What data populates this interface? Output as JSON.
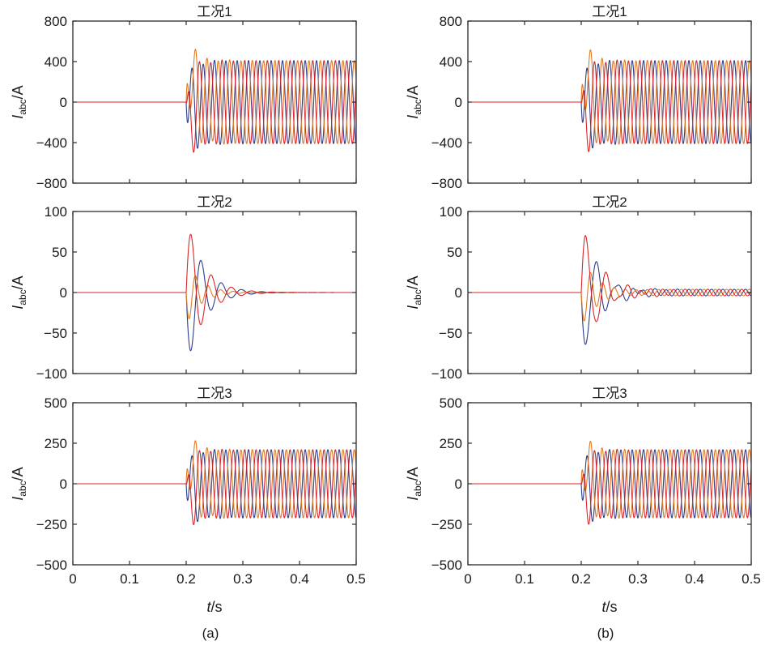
{
  "chart_data": [
    {
      "type": "line",
      "panel": "a",
      "title": "工况1",
      "ylabel_main": "I",
      "ylabel_sub": "abc",
      "ylabel_unit": "/A",
      "ylim": [
        -800,
        800
      ],
      "yticks": [
        800,
        400,
        0,
        -400,
        -800
      ],
      "ytick_labels": [
        "800",
        "400",
        "0",
        "−400",
        "−800"
      ],
      "xlim": [
        0,
        0.5
      ],
      "xtick_labels": [],
      "xlabel": "",
      "caption": "",
      "series": [
        {
          "color": "#2b3e8c",
          "t0": 0.2,
          "freq": 50,
          "steady_amp": 410,
          "phase_deg": -90,
          "dc_offset": -200,
          "tau": 0.012,
          "osc_amp": 60,
          "osc_freq": 28,
          "osc_tau": 0.03
        },
        {
          "color": "#e07a24",
          "t0": 0.2,
          "freq": 50,
          "steady_amp": 410,
          "phase_deg": 150,
          "dc_offset": 420,
          "tau": 0.012,
          "osc_amp": 90,
          "osc_freq": 28,
          "osc_tau": 0.03
        },
        {
          "color": "#d8262a",
          "t0": 0.2,
          "freq": 50,
          "steady_amp": 410,
          "phase_deg": 30,
          "dc_offset": -220,
          "tau": 0.012,
          "osc_amp": -60,
          "osc_freq": 28,
          "osc_tau": 0.03
        }
      ]
    },
    {
      "type": "line",
      "panel": "a",
      "title": "工况2",
      "ylabel_main": "I",
      "ylabel_sub": "abc",
      "ylabel_unit": "/A",
      "ylim": [
        -100,
        100
      ],
      "yticks": [
        100,
        50,
        0,
        -50,
        -100
      ],
      "ytick_labels": [
        "100",
        "50",
        "0",
        "−50",
        "−100"
      ],
      "xlim": [
        0,
        0.5
      ],
      "xtick_labels": [],
      "xlabel": "",
      "caption": "",
      "series": [
        {
          "color": "#2b3e8c",
          "t0": 0.2,
          "freq": 50,
          "steady_amp": 0,
          "phase_deg": 0,
          "dc_offset": 0,
          "tau": 0.02,
          "osc_amp": -95,
          "osc_freq": 28,
          "osc_tau": 0.03
        },
        {
          "color": "#e07a24",
          "t0": 0.2,
          "freq": 50,
          "steady_amp": 0,
          "phase_deg": 0,
          "dc_offset": 0,
          "tau": 0.02,
          "osc_amp": -40,
          "osc_freq": 45,
          "osc_tau": 0.025
        },
        {
          "color": "#d8262a",
          "t0": 0.2,
          "freq": 50,
          "steady_amp": 0,
          "phase_deg": 0,
          "dc_offset": 0,
          "tau": 0.02,
          "osc_amp": 95,
          "osc_freq": 28,
          "osc_tau": 0.03
        }
      ]
    },
    {
      "type": "line",
      "panel": "a",
      "title": "工况3",
      "ylabel_main": "I",
      "ylabel_sub": "abc",
      "ylabel_unit": "/A",
      "ylim": [
        -500,
        500
      ],
      "yticks": [
        500,
        250,
        0,
        -250,
        -500
      ],
      "ytick_labels": [
        "500",
        "250",
        "0",
        "−250",
        "−500"
      ],
      "xlim": [
        0,
        0.5
      ],
      "xtick_labels": [
        "0",
        "0.1",
        "0.2",
        "0.3",
        "0.4",
        "0.5"
      ],
      "xlabel": "t/s",
      "caption": "(a)",
      "series": [
        {
          "color": "#2b3e8c",
          "t0": 0.2,
          "freq": 50,
          "steady_amp": 210,
          "phase_deg": -90,
          "dc_offset": -100,
          "tau": 0.012,
          "osc_amp": 30,
          "osc_freq": 28,
          "osc_tau": 0.03
        },
        {
          "color": "#e07a24",
          "t0": 0.2,
          "freq": 50,
          "steady_amp": 210,
          "phase_deg": 150,
          "dc_offset": 210,
          "tau": 0.012,
          "osc_amp": 45,
          "osc_freq": 28,
          "osc_tau": 0.03
        },
        {
          "color": "#d8262a",
          "t0": 0.2,
          "freq": 50,
          "steady_amp": 210,
          "phase_deg": 30,
          "dc_offset": -110,
          "tau": 0.012,
          "osc_amp": -30,
          "osc_freq": 28,
          "osc_tau": 0.03
        }
      ]
    },
    {
      "type": "line",
      "panel": "b",
      "title": "工况1",
      "ylabel_main": "I",
      "ylabel_sub": "abc",
      "ylabel_unit": "/A",
      "ylim": [
        -800,
        800
      ],
      "yticks": [
        800,
        400,
        0,
        -400,
        -800
      ],
      "ytick_labels": [
        "800",
        "400",
        "0",
        "−400",
        "−800"
      ],
      "xlim": [
        0,
        0.5
      ],
      "xtick_labels": [],
      "xlabel": "",
      "caption": "",
      "series": [
        {
          "color": "#2b3e8c",
          "t0": 0.2,
          "freq": 50,
          "steady_amp": 410,
          "phase_deg": -90,
          "dc_offset": -190,
          "tau": 0.012,
          "osc_amp": 55,
          "osc_freq": 28,
          "osc_tau": 0.03
        },
        {
          "color": "#e07a24",
          "t0": 0.2,
          "freq": 50,
          "steady_amp": 410,
          "phase_deg": 150,
          "dc_offset": 400,
          "tau": 0.012,
          "osc_amp": 85,
          "osc_freq": 28,
          "osc_tau": 0.03
        },
        {
          "color": "#d8262a",
          "t0": 0.2,
          "freq": 50,
          "steady_amp": 410,
          "phase_deg": 30,
          "dc_offset": -210,
          "tau": 0.012,
          "osc_amp": -55,
          "osc_freq": 28,
          "osc_tau": 0.03
        }
      ]
    },
    {
      "type": "line",
      "panel": "b",
      "title": "工况2",
      "ylabel_main": "I",
      "ylabel_sub": "abc",
      "ylabel_unit": "/A",
      "ylim": [
        -100,
        100
      ],
      "yticks": [
        100,
        50,
        0,
        -50,
        -100
      ],
      "ytick_labels": [
        "100",
        "50",
        "0",
        "−50",
        "−100"
      ],
      "xlim": [
        0,
        0.5
      ],
      "xtick_labels": [],
      "xlabel": "",
      "caption": "",
      "series": [
        {
          "color": "#2b3e8c",
          "t0": 0.2,
          "freq": 50,
          "steady_amp": 4,
          "phase_deg": -90,
          "dc_offset": 0,
          "tau": 0.02,
          "osc_amp": -88,
          "osc_freq": 28,
          "osc_tau": 0.03
        },
        {
          "color": "#e07a24",
          "t0": 0.2,
          "freq": 50,
          "steady_amp": 4,
          "phase_deg": 150,
          "dc_offset": 0,
          "tau": 0.02,
          "osc_amp": -40,
          "osc_freq": 45,
          "osc_tau": 0.025
        },
        {
          "color": "#d8262a",
          "t0": 0.2,
          "freq": 50,
          "steady_amp": 4,
          "phase_deg": 30,
          "dc_offset": 0,
          "tau": 0.02,
          "osc_amp": 92,
          "osc_freq": 28,
          "osc_tau": 0.03
        }
      ]
    },
    {
      "type": "line",
      "panel": "b",
      "title": "工况3",
      "ylabel_main": "I",
      "ylabel_sub": "abc",
      "ylabel_unit": "/A",
      "ylim": [
        -500,
        500
      ],
      "yticks": [
        500,
        250,
        0,
        -250,
        -500
      ],
      "ytick_labels": [
        "500",
        "250",
        "0",
        "−250",
        "−500"
      ],
      "xlim": [
        0,
        0.5
      ],
      "xtick_labels": [
        "0",
        "0.1",
        "0.2",
        "0.3",
        "0.4",
        "0.5"
      ],
      "xlabel": "t/s",
      "caption": "(b)",
      "series": [
        {
          "color": "#2b3e8c",
          "t0": 0.2,
          "freq": 50,
          "steady_amp": 210,
          "phase_deg": -90,
          "dc_offset": -95,
          "tau": 0.012,
          "osc_amp": 28,
          "osc_freq": 28,
          "osc_tau": 0.03
        },
        {
          "color": "#e07a24",
          "t0": 0.2,
          "freq": 50,
          "steady_amp": 210,
          "phase_deg": 150,
          "dc_offset": 200,
          "tau": 0.012,
          "osc_amp": 40,
          "osc_freq": 28,
          "osc_tau": 0.03
        },
        {
          "color": "#d8262a",
          "t0": 0.2,
          "freq": 50,
          "steady_amp": 210,
          "phase_deg": 30,
          "dc_offset": -105,
          "tau": 0.012,
          "osc_amp": -28,
          "osc_freq": 28,
          "osc_tau": 0.03
        }
      ]
    }
  ]
}
